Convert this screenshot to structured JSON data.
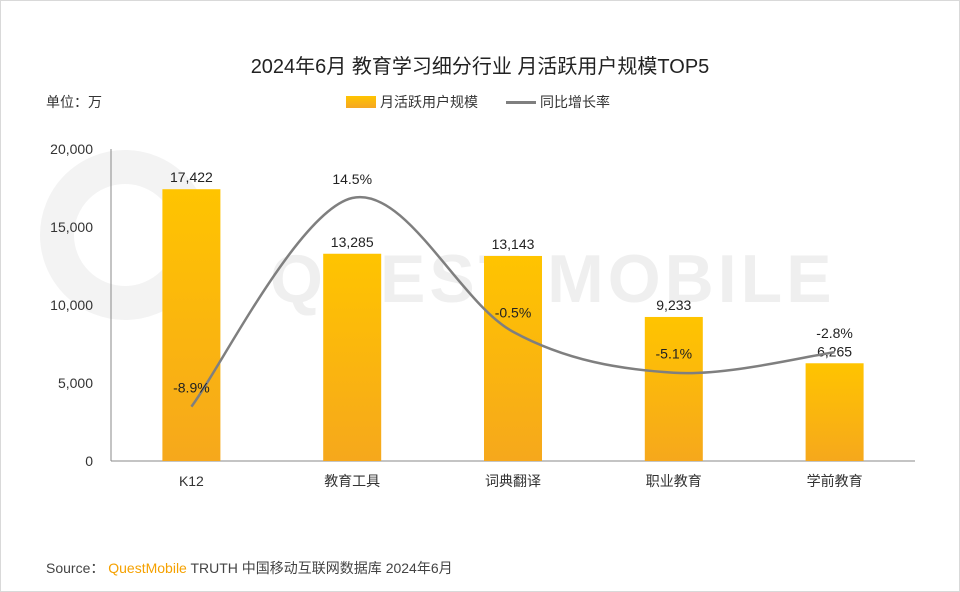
{
  "title": "2024年6月 教育学习细分行业 月活跃用户规模TOP5",
  "unit_label": "单位：万",
  "watermark": "QUEST MOBILE",
  "source": {
    "label": "Source：",
    "brand": "QuestMobile",
    "text": "TRUTH 中国移动互联网数据库 2024年6月"
  },
  "colors": {
    "bar_top": "#ffc400",
    "bar_bottom": "#f6a81c",
    "line": "#7f7f7f"
  },
  "chart_data": {
    "type": "bar",
    "title": "2024年6月 教育学习细分行业 月活跃用户规模TOP5",
    "categories": [
      "K12",
      "教育工具",
      "词典翻译",
      "职业教育",
      "学前教育"
    ],
    "series": [
      {
        "name": "月活跃用户规模",
        "type": "bar",
        "values": [
          17422,
          13285,
          13143,
          9233,
          6265
        ],
        "labels": [
          "17,422",
          "13,285",
          "13,143",
          "9,233",
          "6,265"
        ]
      },
      {
        "name": "同比增长率",
        "type": "line",
        "values": [
          -8.9,
          14.5,
          -0.5,
          -5.1,
          -2.8
        ],
        "labels": [
          "-8.9%",
          "14.5%",
          "-0.5%",
          "-5.1%",
          "-2.8%"
        ]
      }
    ],
    "yticks": [
      "0",
      "5,000",
      "10,000",
      "15,000",
      "20,000"
    ],
    "ylim": [
      0,
      20000
    ],
    "ylabel": "单位：万",
    "legend": "top-center"
  }
}
